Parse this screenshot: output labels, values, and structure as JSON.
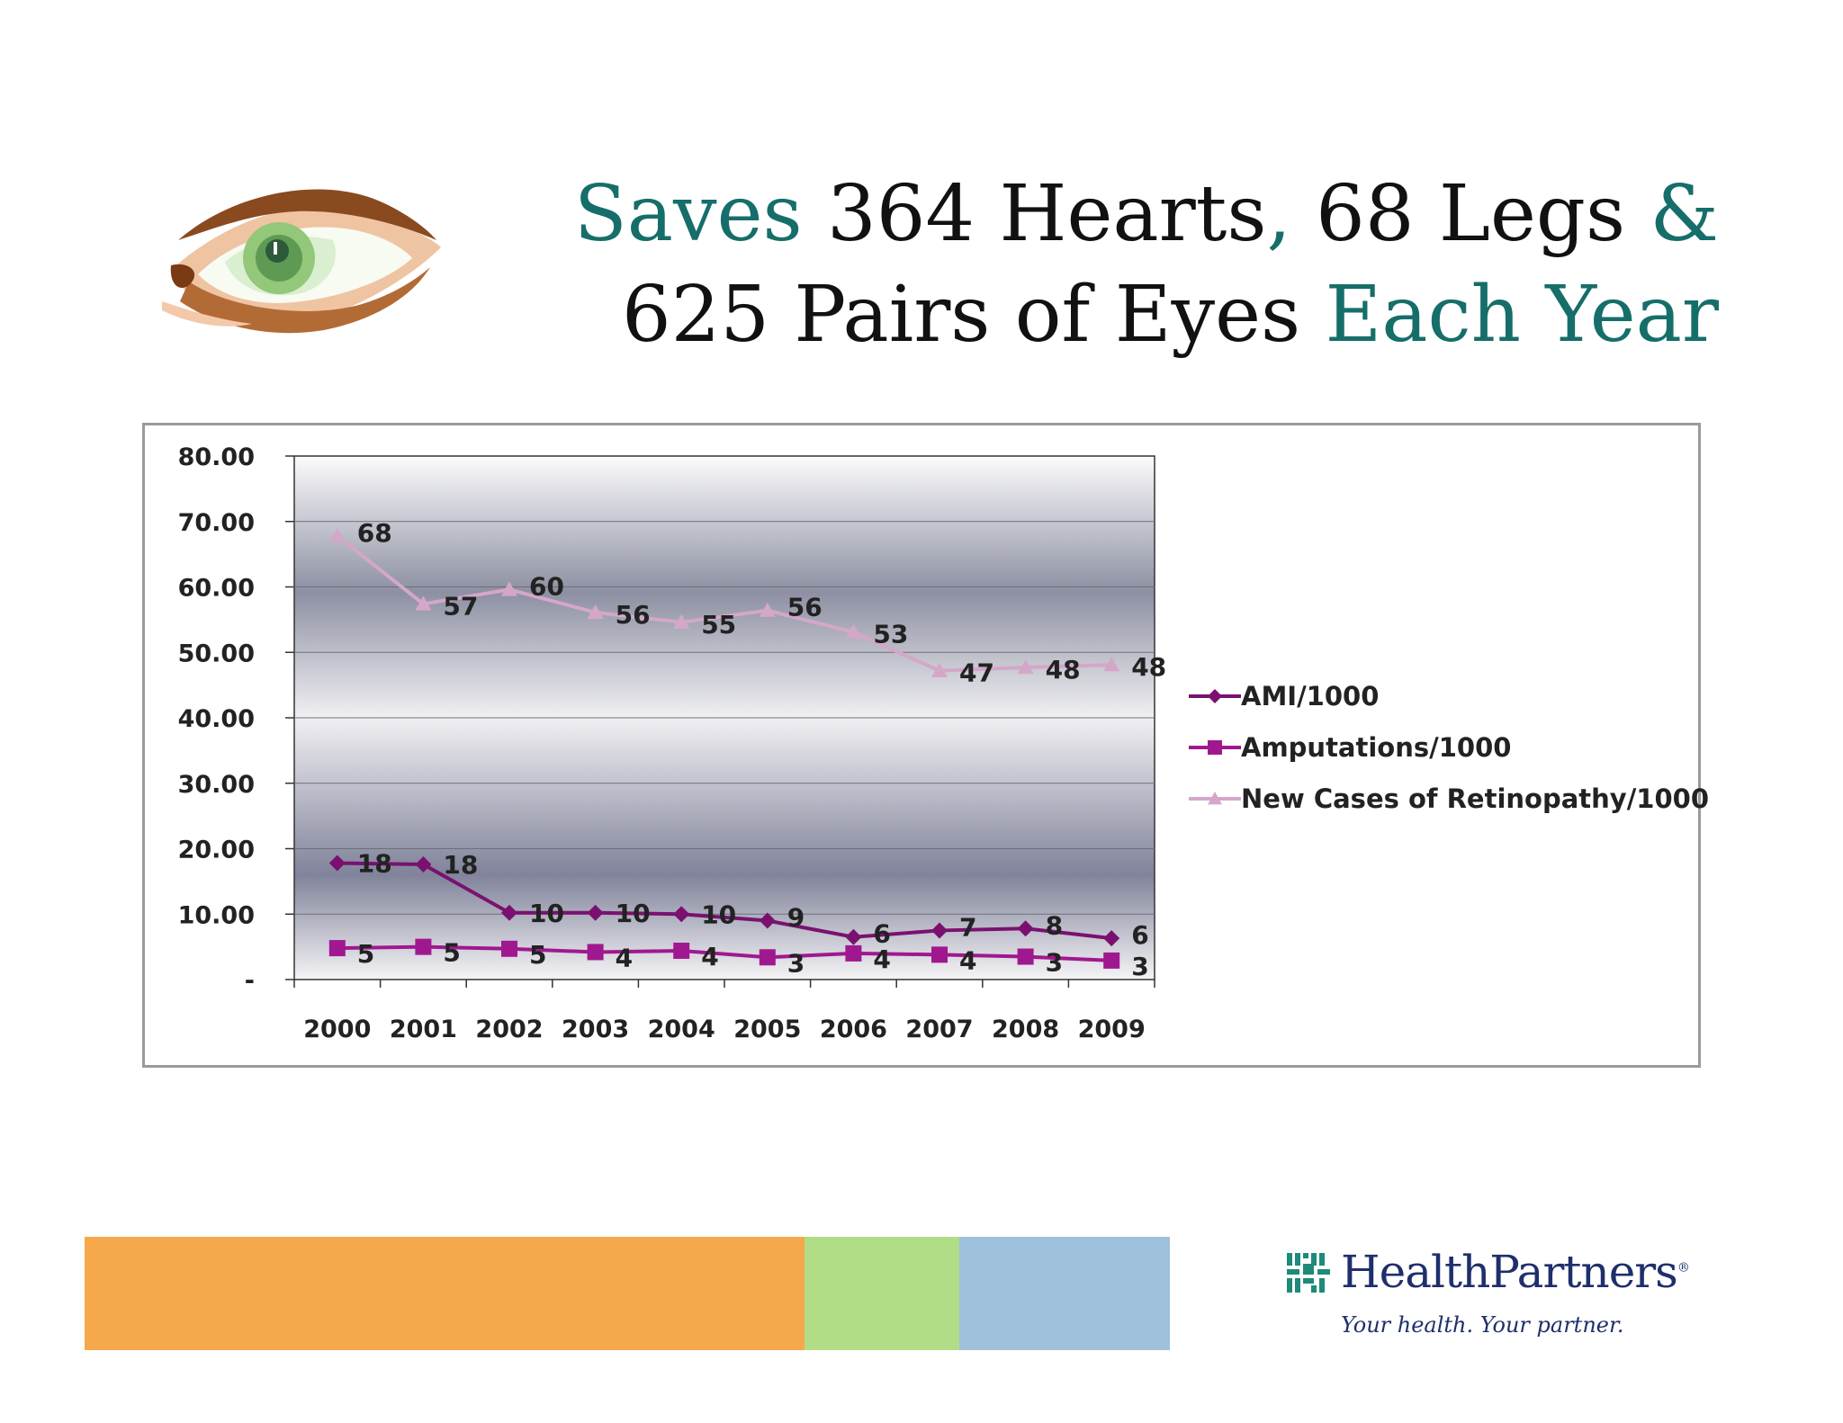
{
  "slide": {
    "title_line1": {
      "accent_start": "Saves",
      "middle": " 364 Hearts",
      "comma": ",",
      "middle2": " 68 Legs ",
      "accent_end": "&"
    },
    "title_line2": {
      "text": "625 Pairs of Eyes ",
      "accent": "Each Year"
    },
    "colors": {
      "accent": "#166e6a",
      "text": "#111111"
    },
    "icon": "eye-illustration"
  },
  "chart_data": {
    "type": "line",
    "x": [
      "2000",
      "2001",
      "2002",
      "2003",
      "2004",
      "2005",
      "2006",
      "2007",
      "2008",
      "2009"
    ],
    "y_ticks": [
      "80.00",
      "70.00",
      "60.00",
      "50.00",
      "40.00",
      "30.00",
      "20.00",
      "10.00",
      "-"
    ],
    "ylim": [
      0,
      80
    ],
    "legend_position": "right",
    "grid": true,
    "series": [
      {
        "name": "AMI/1000",
        "marker": "diamond",
        "color": "#7a1170",
        "values": [
          17.8,
          17.6,
          10.2,
          10.2,
          10.0,
          9.0,
          6.5,
          7.5,
          7.8,
          6.3
        ],
        "labels": [
          "18",
          "18",
          "10",
          "10",
          "10",
          "9",
          "6",
          "7",
          "8",
          "6"
        ]
      },
      {
        "name": "Amputations/1000",
        "marker": "square",
        "color": "#a0188f",
        "values": [
          4.8,
          5.0,
          4.7,
          4.2,
          4.4,
          3.4,
          4.0,
          3.8,
          3.5,
          2.9
        ],
        "labels": [
          "5",
          "5",
          "5",
          "4",
          "4",
          "3",
          "4",
          "4",
          "3",
          "3"
        ]
      },
      {
        "name": "New Cases of Retinopathy/1000",
        "marker": "triangle",
        "color": "#d4a7c8",
        "values": [
          67.8,
          57.4,
          59.6,
          56.1,
          54.6,
          56.4,
          53.1,
          47.2,
          47.7,
          48.1
        ],
        "labels": [
          "68",
          "57",
          "60",
          "56",
          "55",
          "56",
          "53",
          "47",
          "48",
          "48"
        ]
      }
    ]
  },
  "footer": {
    "brand_colors": [
      "#f6a84d",
      "#b1dd86",
      "#9fc1db"
    ],
    "logo": {
      "name": "HealthPartners",
      "registered": "®",
      "tagline": "Your health. Your partner."
    }
  }
}
